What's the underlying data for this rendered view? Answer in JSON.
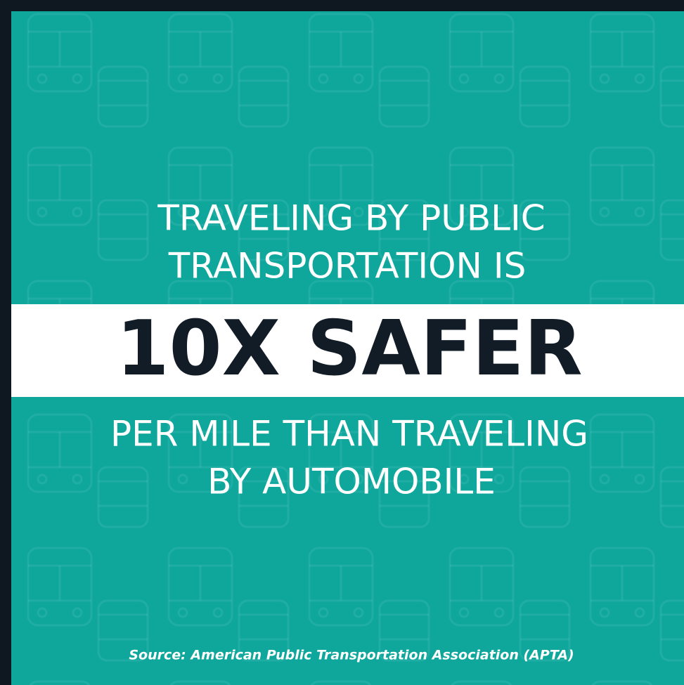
{
  "headline": {
    "lines": [
      "TRAVELING BY PUBLIC",
      "TRANSPORTATION IS"
    ]
  },
  "highlight": "10X SAFER",
  "continuation": {
    "lines": [
      "PER MILE THAN TRAVELING",
      "BY AUTOMOBILE"
    ]
  },
  "source": "Source: American Public Transportation Association (APTA)"
}
